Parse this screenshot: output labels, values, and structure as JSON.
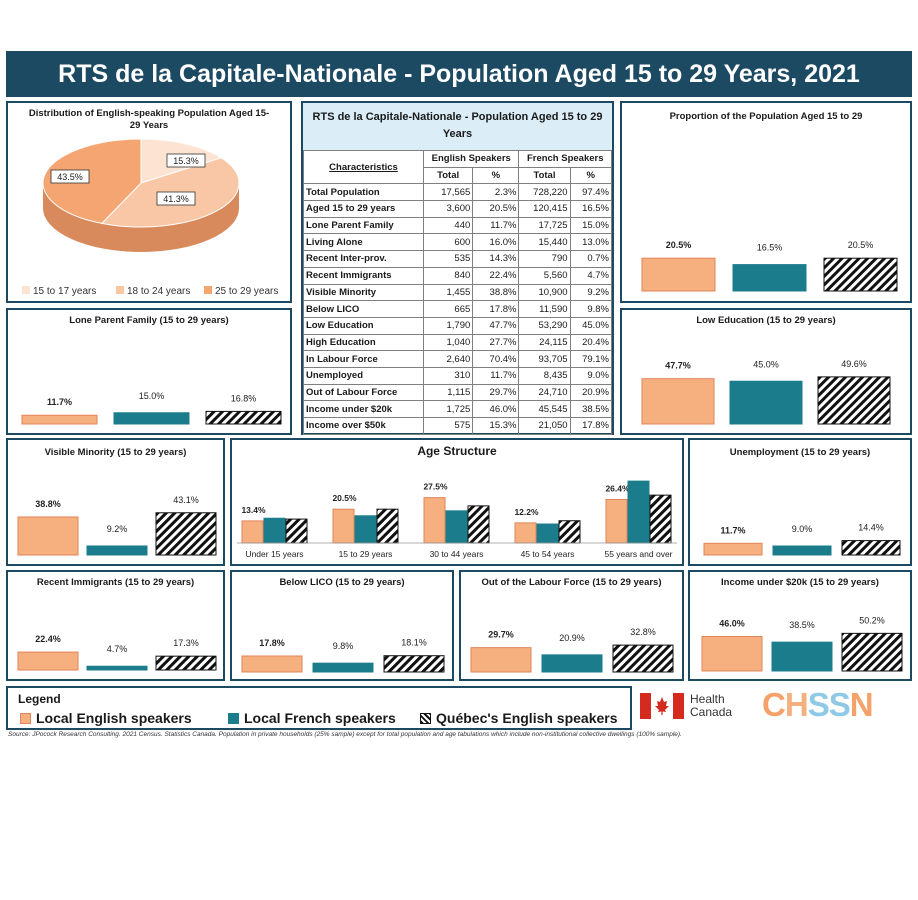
{
  "title": "RTS de la Capitale-Nationale - Population Aged 15 to 29 Years, 2021",
  "colors": {
    "english": "#f6b07f",
    "english_stroke": "#e0855a",
    "french": "#1b7c8c",
    "quebec": "hatched-black",
    "frame": "#1d4a63"
  },
  "table": {
    "title": "RTS de la Capitale-Nationale - Population Aged 15 to 29 Years",
    "col_characteristics": "Characteristics",
    "col_english": "English Speakers",
    "col_french": "French Speakers",
    "col_total": "Total",
    "col_pct": "%",
    "rows": [
      {
        "label": "Total Population",
        "en_total": "17,565",
        "en_pct": "2.3%",
        "fr_total": "728,220",
        "fr_pct": "97.4%"
      },
      {
        "label": "Aged 15 to 29 years",
        "en_total": "3,600",
        "en_pct": "20.5%",
        "fr_total": "120,415",
        "fr_pct": "16.5%"
      },
      {
        "label": "Lone Parent Family",
        "en_total": "440",
        "en_pct": "11.7%",
        "fr_total": "17,725",
        "fr_pct": "15.0%"
      },
      {
        "label": "Living Alone",
        "en_total": "600",
        "en_pct": "16.0%",
        "fr_total": "15,440",
        "fr_pct": "13.0%"
      },
      {
        "label": "Recent Inter-prov.",
        "en_total": "535",
        "en_pct": "14.3%",
        "fr_total": "790",
        "fr_pct": "0.7%"
      },
      {
        "label": "Recent Immigrants",
        "en_total": "840",
        "en_pct": "22.4%",
        "fr_total": "5,560",
        "fr_pct": "4.7%"
      },
      {
        "label": "Visible Minority",
        "en_total": "1,455",
        "en_pct": "38.8%",
        "fr_total": "10,900",
        "fr_pct": "9.2%"
      },
      {
        "label": "Below LICO",
        "en_total": "665",
        "en_pct": "17.8%",
        "fr_total": "11,590",
        "fr_pct": "9.8%"
      },
      {
        "label": "Low Education",
        "en_total": "1,790",
        "en_pct": "47.7%",
        "fr_total": "53,290",
        "fr_pct": "45.0%"
      },
      {
        "label": "High Education",
        "en_total": "1,040",
        "en_pct": "27.7%",
        "fr_total": "24,115",
        "fr_pct": "20.4%"
      },
      {
        "label": "In Labour Force",
        "en_total": "2,640",
        "en_pct": "70.4%",
        "fr_total": "93,705",
        "fr_pct": "79.1%"
      },
      {
        "label": "Unemployed",
        "en_total": "310",
        "en_pct": "11.7%",
        "fr_total": "8,435",
        "fr_pct": "9.0%"
      },
      {
        "label": "Out of Labour Force",
        "en_total": "1,115",
        "en_pct": "29.7%",
        "fr_total": "24,710",
        "fr_pct": "20.9%"
      },
      {
        "label": "Income under $20k",
        "en_total": "1,725",
        "en_pct": "46.0%",
        "fr_total": "45,545",
        "fr_pct": "38.5%"
      },
      {
        "label": "Income over $50k",
        "en_total": "575",
        "en_pct": "15.3%",
        "fr_total": "21,050",
        "fr_pct": "17.8%"
      }
    ]
  },
  "legend": {
    "title": "Legend",
    "english": "Local English speakers",
    "french": "Local French speakers",
    "quebec": "Québec's English speakers"
  },
  "source": "Source: JPocock Research Consulting. 2021 Census. Statistics Canada. Population in private households (25% sample) except for total population and age tabulations which include non-institutional collective dwellings (100% sample).",
  "logos": {
    "health_canada_line1": "Health",
    "health_canada_line2": "Canada",
    "chssn": "CHSSN"
  },
  "chart_data": [
    {
      "id": "pie",
      "type": "pie",
      "title": "Distribution of English-speaking  Population Aged 15-29 Years",
      "categories": [
        "15 to 17 years",
        "18 to 24 years",
        "25 to 29 years"
      ],
      "values": [
        15.3,
        41.3,
        43.5
      ],
      "labels": [
        "15.3%",
        "41.3%",
        "43.5%"
      ],
      "colors": [
        "#fde3d2",
        "#f9c7a5",
        "#f4a572"
      ]
    },
    {
      "id": "prop",
      "type": "bar",
      "title": "Proportion of the Population  Aged 15 to 29",
      "series": [
        {
          "values": [
            20.5,
            16.5,
            20.5
          ],
          "labels": [
            "20.5%",
            "16.5%",
            "20.5%"
          ]
        }
      ]
    },
    {
      "id": "lone",
      "type": "bar",
      "title": "Lone Parent Family (15 to 29 years)",
      "series": [
        {
          "values": [
            11.7,
            15.0,
            16.8
          ],
          "labels": [
            "11.7%",
            "15.0%",
            "16.8%"
          ]
        }
      ]
    },
    {
      "id": "loweduc",
      "type": "bar",
      "title": "Low Education  (15 to 29 years)",
      "series": [
        {
          "values": [
            47.7,
            45.0,
            49.6
          ],
          "labels": [
            "47.7%",
            "45.0%",
            "49.6%"
          ]
        }
      ]
    },
    {
      "id": "vismin",
      "type": "bar",
      "title": "Visible Minority  (15 to 29 years)",
      "series": [
        {
          "values": [
            38.8,
            9.2,
            43.1
          ],
          "labels": [
            "38.8%",
            "9.2%",
            "43.1%"
          ]
        }
      ]
    },
    {
      "id": "age",
      "type": "bar",
      "title": "Age Structure",
      "categories": [
        "Under 15 years",
        "15 to 29 years",
        "30 to 44 years",
        "45 to 54 years",
        "55 years and over"
      ],
      "series": [
        {
          "name": "Local English speakers",
          "values": [
            13.4,
            20.5,
            27.5,
            12.2,
            26.4
          ],
          "labels": [
            "13.4%",
            "20.5%",
            "27.5%",
            "12.2%",
            "26.4%"
          ]
        },
        {
          "name": "Local French speakers",
          "values": [
            15.0,
            16.5,
            19.5,
            11.5,
            37.5
          ]
        },
        {
          "name": "Québec's English speakers",
          "values": [
            14.5,
            20.5,
            22.5,
            13.5,
            29.0
          ]
        }
      ]
    },
    {
      "id": "unemp",
      "type": "bar",
      "title": "Unemployment  (15 to 29 years)",
      "series": [
        {
          "values": [
            11.7,
            9.0,
            14.4
          ],
          "labels": [
            "11.7%",
            "9.0%",
            "14.4%"
          ]
        }
      ]
    },
    {
      "id": "immig",
      "type": "bar",
      "title": "Recent Immigrants  (15 to 29 years)",
      "series": [
        {
          "values": [
            22.4,
            4.7,
            17.3
          ],
          "labels": [
            "22.4%",
            "4.7%",
            "17.3%"
          ]
        }
      ]
    },
    {
      "id": "lico",
      "type": "bar",
      "title": "Below LICO  (15 to 29 years)",
      "series": [
        {
          "values": [
            17.8,
            9.8,
            18.1
          ],
          "labels": [
            "17.8%",
            "9.8%",
            "18.1%"
          ]
        }
      ]
    },
    {
      "id": "outlf",
      "type": "bar",
      "title": "Out of the Labour Force  (15 to 29 years)",
      "series": [
        {
          "values": [
            29.7,
            20.9,
            32.8
          ],
          "labels": [
            "29.7%",
            "20.9%",
            "32.8%"
          ]
        }
      ]
    },
    {
      "id": "income",
      "type": "bar",
      "title": "Income under $20k  (15 to 29 years)",
      "series": [
        {
          "values": [
            46.0,
            38.5,
            50.2
          ],
          "labels": [
            "46.0%",
            "38.5%",
            "50.2%"
          ]
        }
      ]
    }
  ]
}
